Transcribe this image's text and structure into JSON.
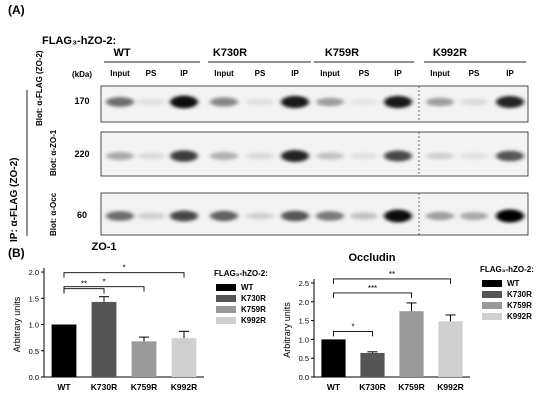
{
  "panel_a": {
    "label": "(A)",
    "construct_label": "FLAG₃-hZO-2:",
    "kda_label": "(kDa)",
    "side_label": "IP: α-FLAG (ZO-2)",
    "groups": [
      "WT",
      "K730R",
      "K759R",
      "K992R"
    ],
    "lanes": [
      "Input",
      "PS",
      "IP"
    ],
    "blots": [
      {
        "label": "Blot: α-FLAG (ZO-2)",
        "kda": "170",
        "bands": [
          0.55,
          0.08,
          0.95,
          0.45,
          0.08,
          0.9,
          0.35,
          0.06,
          0.9,
          0.35,
          0.1,
          0.85
        ]
      },
      {
        "label": "Blot: α-ZO-1",
        "kda": "220",
        "bands": [
          0.3,
          0.1,
          0.75,
          0.28,
          0.1,
          0.85,
          0.2,
          0.08,
          0.7,
          0.15,
          0.08,
          0.65
        ]
      },
      {
        "label": "Blot: α-Occ",
        "kda": "60",
        "bands": [
          0.55,
          0.15,
          0.7,
          0.6,
          0.15,
          0.65,
          0.5,
          0.2,
          0.95,
          0.35,
          0.3,
          1.0
        ]
      }
    ]
  },
  "panel_b": {
    "label": "(B)",
    "legend_title": "FLAG₃-hZO-2:",
    "legend_items": [
      {
        "name": "WT",
        "color": "#000000"
      },
      {
        "name": "K730R",
        "color": "#555555"
      },
      {
        "name": "K759R",
        "color": "#999999"
      },
      {
        "name": "K992R",
        "color": "#cfcfcf"
      }
    ]
  },
  "chart_data": [
    {
      "type": "bar",
      "title": "ZO-1",
      "ylabel": "Arbitrary units",
      "categories": [
        "WT",
        "K730R",
        "K759R",
        "K992R"
      ],
      "values": [
        1.0,
        1.43,
        0.68,
        0.74
      ],
      "errors": [
        0.0,
        0.1,
        0.08,
        0.13
      ],
      "colors": [
        "#000000",
        "#555555",
        "#999999",
        "#cfcfcf"
      ],
      "yticks": [
        "0.0",
        "0.5",
        "1.0",
        "1.5",
        "2.0"
      ],
      "ylim": [
        0,
        2.0
      ],
      "significance": [
        {
          "from": 0,
          "to": 1,
          "label": "**"
        },
        {
          "from": 0,
          "to": 2,
          "label": "*"
        },
        {
          "from": 0,
          "to": 3,
          "label": "*"
        }
      ]
    },
    {
      "type": "bar",
      "title": "Occludin",
      "ylabel": "Arbitrary units",
      "categories": [
        "WT",
        "K730R",
        "K759R",
        "K992R"
      ],
      "values": [
        1.0,
        0.64,
        1.75,
        1.48
      ],
      "errors": [
        0.0,
        0.03,
        0.22,
        0.17
      ],
      "colors": [
        "#000000",
        "#555555",
        "#999999",
        "#cfcfcf"
      ],
      "yticks": [
        "0.0",
        "0.5",
        "1.0",
        "1.5",
        "2.0",
        "2.5"
      ],
      "ylim": [
        0,
        2.5
      ],
      "significance": [
        {
          "from": 0,
          "to": 1,
          "label": "*"
        },
        {
          "from": 0,
          "to": 2,
          "label": "***"
        },
        {
          "from": 0,
          "to": 3,
          "label": "**"
        }
      ]
    }
  ]
}
